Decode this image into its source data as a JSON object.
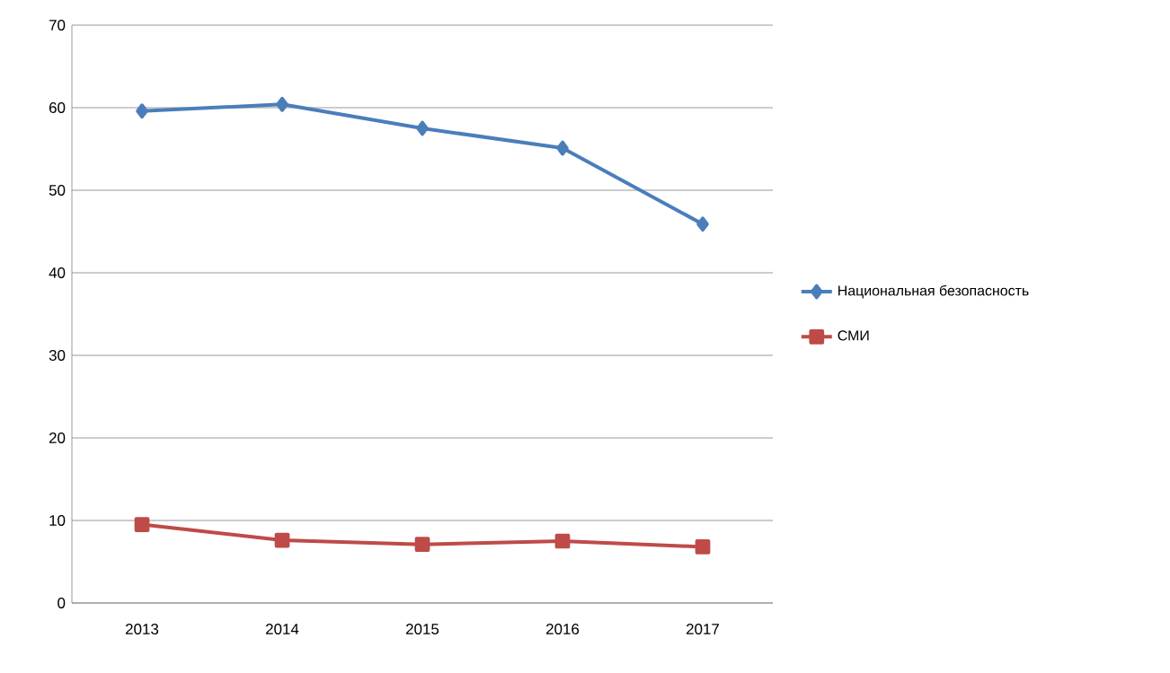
{
  "chart_data": {
    "type": "line",
    "categories": [
      "2013",
      "2014",
      "2015",
      "2016",
      "2017"
    ],
    "series": [
      {
        "name": "Национальная безопасность",
        "color": "#4a7ebb",
        "marker": "diamond",
        "values": [
          59.6,
          60.4,
          57.5,
          55.1,
          45.9
        ]
      },
      {
        "name": "СМИ",
        "color": "#be4b48",
        "marker": "square",
        "values": [
          9.5,
          7.6,
          7.1,
          7.5,
          6.8
        ]
      }
    ],
    "ylim": [
      0,
      70
    ],
    "yticks": [
      0,
      10,
      20,
      30,
      40,
      50,
      60,
      70
    ],
    "grid": "y",
    "legend": "right",
    "line_style": "solid"
  }
}
